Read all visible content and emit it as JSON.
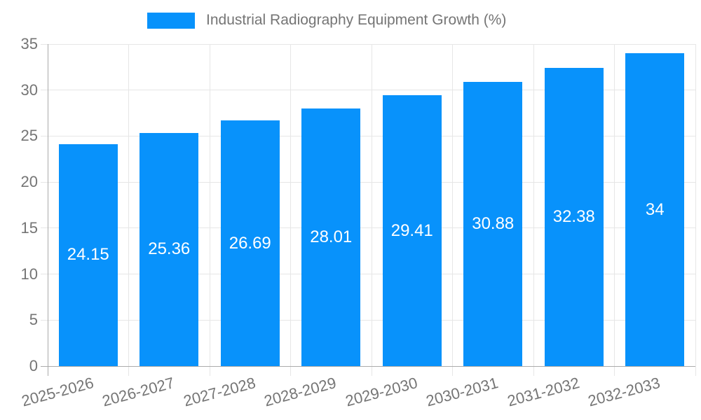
{
  "legend": {
    "label": "Industrial Radiography Equipment Growth (%)"
  },
  "chart_data": {
    "type": "bar",
    "title": "Industrial Radiography Equipment Growth (%)",
    "categories": [
      "2025-2026",
      "2026-2027",
      "2027-2028",
      "2028-2029",
      "2029-2030",
      "2030-2031",
      "2031-2032",
      "2032-2033"
    ],
    "values": [
      24.15,
      25.36,
      26.69,
      28.01,
      29.41,
      30.88,
      32.38,
      34
    ],
    "bar_labels": [
      "24.15",
      "25.36",
      "26.69",
      "28.01",
      "29.41",
      "30.88",
      "32.38",
      "34"
    ],
    "xlabel": "",
    "ylabel": "",
    "ylim": [
      0,
      35
    ],
    "yticks": [
      0,
      5,
      10,
      15,
      20,
      25,
      30,
      35
    ],
    "grid": true,
    "legend_position": "top",
    "colors": {
      "bar": "#0892fb",
      "grid": "#e6e6e6",
      "axis": "#ababab",
      "tick_text": "#757575",
      "value_label": "#ffffff"
    }
  }
}
